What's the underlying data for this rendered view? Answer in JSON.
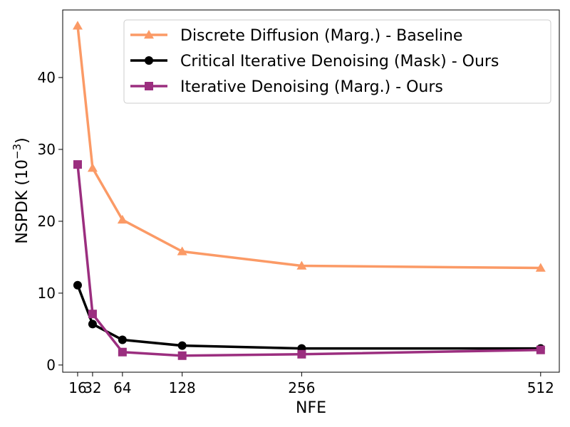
{
  "chart_data": {
    "type": "line",
    "x": [
      16,
      32,
      64,
      128,
      256,
      512
    ],
    "xticks": [
      16,
      32,
      64,
      128,
      256,
      512
    ],
    "yticks": [
      0,
      10,
      20,
      30,
      40
    ],
    "xlim": [
      0,
      532
    ],
    "ylim": [
      -1,
      49.4
    ],
    "xlabel": "NFE",
    "ylabel": "NSPDK (10",
    "ylabel_exp": "−3",
    "ylabel_close": ")",
    "grid": false,
    "legend_position": "top-right",
    "series": [
      {
        "name": "Discrete Diffusion (Marg.) - Baseline",
        "color": "#fb9a66",
        "marker": "triangle",
        "values": [
          47.2,
          27.4,
          20.2,
          15.8,
          13.8,
          13.5
        ]
      },
      {
        "name": "Critical Iterative Denoising (Mask) - Ours",
        "color": "#000000",
        "marker": "circle",
        "values": [
          11.1,
          5.7,
          3.5,
          2.7,
          2.3,
          2.3
        ]
      },
      {
        "name": "Iterative Denoising (Marg.) - Ours",
        "color": "#9b2e7f",
        "marker": "square",
        "values": [
          27.9,
          7.1,
          1.8,
          1.3,
          1.5,
          2.1
        ]
      }
    ]
  }
}
